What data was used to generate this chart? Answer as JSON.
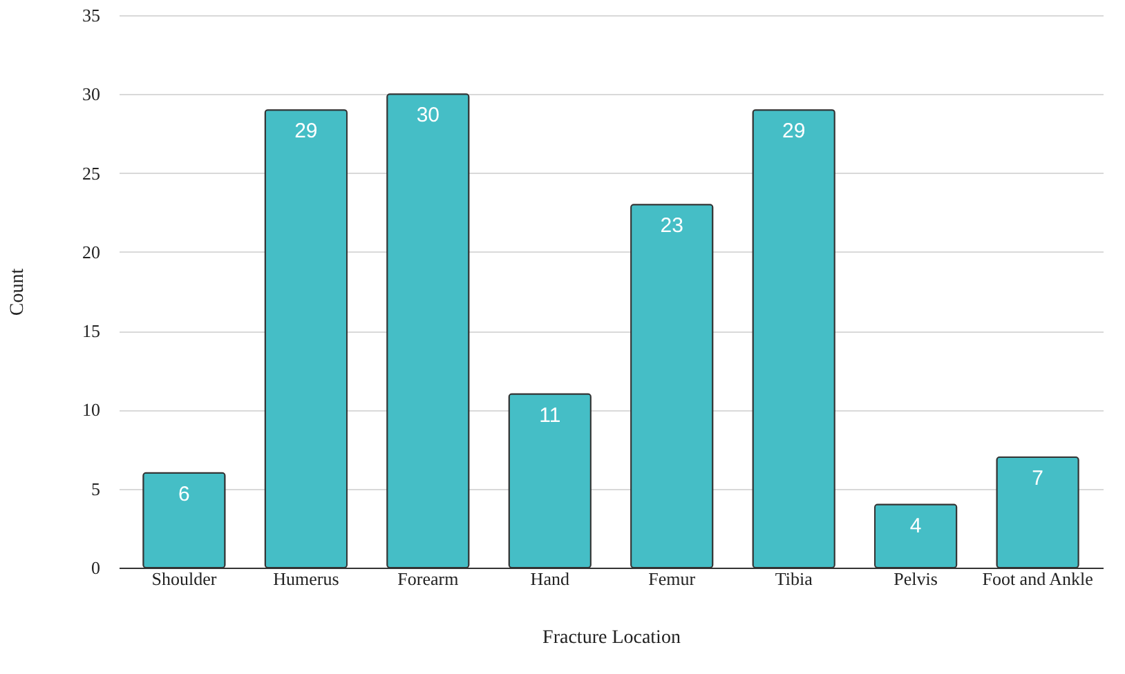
{
  "chart_data": {
    "type": "bar",
    "xlabel": "Fracture Location",
    "ylabel": "Count",
    "categories": [
      "Shoulder",
      "Humerus",
      "Forearm",
      "Hand",
      "Femur",
      "Tibia",
      "Pelvis",
      "Foot and Ankle"
    ],
    "values": [
      6,
      29,
      30,
      11,
      23,
      29,
      4,
      7
    ],
    "color": "#45bec6",
    "ylim": [
      0,
      35
    ],
    "yticks": [
      0,
      5,
      10,
      15,
      20,
      25,
      30,
      35
    ],
    "grid": "y",
    "data_labels": true
  }
}
